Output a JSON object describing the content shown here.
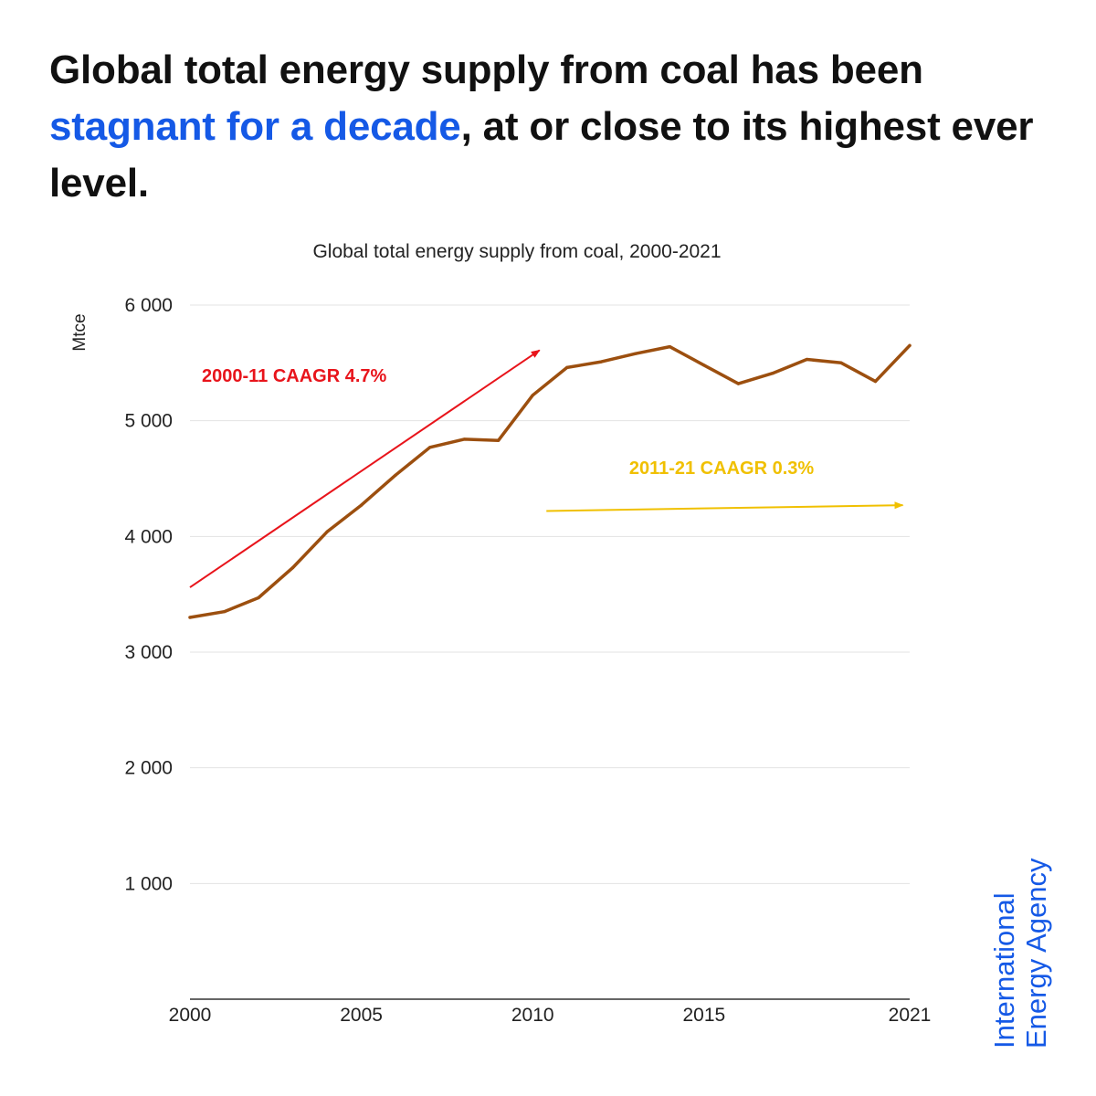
{
  "headline": {
    "part1": "Global total energy supply from coal has been ",
    "highlight": "stagnant for a decade",
    "part2": ", at or close to its highest ever level."
  },
  "brand": {
    "line1": "International",
    "line2": "Energy Agency"
  },
  "colors": {
    "highlight": "#1559e6",
    "series": "#9c4f0f",
    "annotation_red": "#e8141b",
    "annotation_yellow": "#f0c000",
    "grid": "#e3e3e3"
  },
  "chart_data": {
    "type": "line",
    "title": "Global total energy supply from coal, 2000-2021",
    "ylabel": "Mtce",
    "xlim": [
      2000,
      2021
    ],
    "ylim": [
      0,
      6000
    ],
    "yticks": [
      1000,
      2000,
      3000,
      4000,
      5000,
      6000
    ],
    "ytick_labels": [
      "1 000",
      "2 000",
      "3 000",
      "4 000",
      "5 000",
      "6 000"
    ],
    "xticks": [
      2000,
      2005,
      2010,
      2015,
      2021
    ],
    "xtick_labels": [
      "2000",
      "2005",
      "2010",
      "2015",
      "2021"
    ],
    "grid": true,
    "x": [
      2000,
      2001,
      2002,
      2003,
      2004,
      2005,
      2006,
      2007,
      2008,
      2009,
      2010,
      2011,
      2012,
      2013,
      2014,
      2015,
      2016,
      2017,
      2018,
      2019,
      2020,
      2021
    ],
    "series": [
      {
        "values": [
          3300,
          3350,
          3470,
          3730,
          4040,
          4270,
          4530,
          4770,
          4840,
          4830,
          5220,
          5460,
          5510,
          5580,
          5640,
          5480,
          5320,
          5410,
          5530,
          5500,
          5340,
          5650
        ]
      }
    ],
    "annotations": [
      {
        "text": "2000-11 CAAGR 4.7%",
        "color": "#e8141b",
        "arrow_from": [
          2000,
          3560
        ],
        "arrow_to": [
          2010.2,
          5610
        ]
      },
      {
        "text": "2011-21 CAAGR 0.3%",
        "color": "#f0c000",
        "arrow_from": [
          2010.4,
          4220
        ],
        "arrow_to": [
          2020.8,
          4270
        ]
      }
    ]
  }
}
